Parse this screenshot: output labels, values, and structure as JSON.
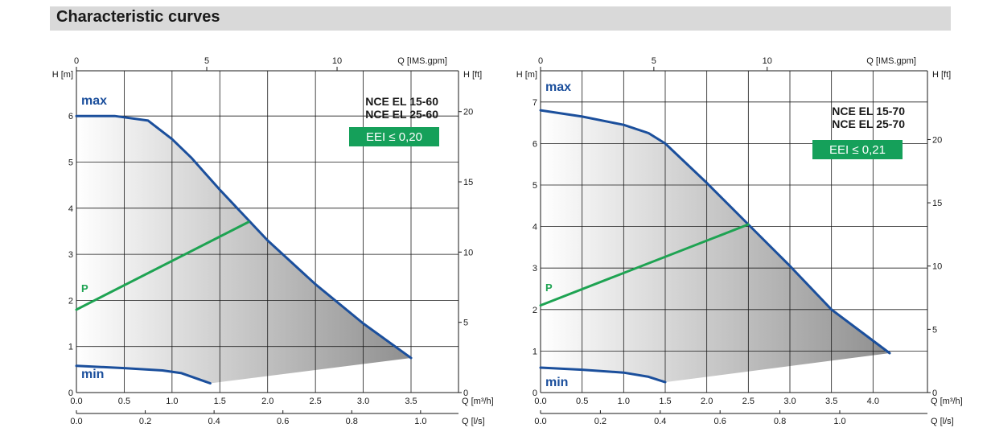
{
  "header": {
    "title": "Characteristic curves"
  },
  "chart_data": [
    {
      "type": "line",
      "models": [
        "NCE EL 15-60",
        "NCE EL 25-60"
      ],
      "eei_label": "EEI ≤ 0,20",
      "xlabel": "Q [m³/h]",
      "ylabel": "H [m]",
      "ylabel_right": "H [ft]",
      "xlabel_top": "Q [IMS.gpm]",
      "xlabel_bottom2": "Q [l/s]",
      "xlim": [
        0,
        3.5
      ],
      "ylim": [
        0,
        6.8
      ],
      "x_ticks": [
        "0.0",
        "0.5",
        "1.0",
        "1.5",
        "2.0",
        "2.5",
        "3.0",
        "3.5"
      ],
      "y_ticks": [
        "0",
        "1",
        "2",
        "3",
        "4",
        "5",
        "6"
      ],
      "ft_ticks": [
        "0",
        "5",
        "10",
        "15",
        "20"
      ],
      "gpm_ticks": [
        "0",
        "5",
        "10"
      ],
      "ls_ticks": [
        "0.0",
        "0.2",
        "0.4",
        "0.6",
        "0.8",
        "1.0"
      ],
      "series": [
        {
          "name": "max",
          "x": [
            0,
            0.4,
            0.75,
            1.0,
            1.2,
            1.5,
            2.0,
            2.5,
            3.0,
            3.5
          ],
          "y": [
            6.0,
            6.0,
            5.9,
            5.5,
            5.1,
            4.4,
            3.3,
            2.35,
            1.5,
            0.75
          ]
        },
        {
          "name": "min",
          "x": [
            0,
            0.5,
            0.9,
            1.1,
            1.4
          ],
          "y": [
            0.58,
            0.53,
            0.48,
            0.42,
            0.2
          ]
        },
        {
          "name": "P",
          "x": [
            0,
            1.8
          ],
          "y": [
            1.8,
            3.7
          ]
        }
      ],
      "grid": true
    },
    {
      "type": "line",
      "models": [
        "NCE EL 15-70",
        "NCE EL 25-70"
      ],
      "eei_label": "EEI ≤ 0,21",
      "xlabel": "Q [m³/h]",
      "ylabel": "H [m]",
      "ylabel_right": "H [ft]",
      "xlabel_top": "Q [IMS.gpm]",
      "xlabel_bottom2": "Q [l/s]",
      "xlim": [
        0,
        4.5
      ],
      "ylim": [
        0,
        8.0
      ],
      "x_ticks": [
        "0.0",
        "0.5",
        "1.0",
        "1.5",
        "2.0",
        "2.5",
        "3.0",
        "3.5",
        "4.0"
      ],
      "y_ticks": [
        "0",
        "1",
        "2",
        "3",
        "4",
        "5",
        "6",
        "7"
      ],
      "ft_ticks": [
        "0",
        "5",
        "10",
        "15",
        "20"
      ],
      "gpm_ticks": [
        "0",
        "5",
        "10"
      ],
      "ls_ticks": [
        "0.0",
        "0.2",
        "0.4",
        "0.6",
        "0.8",
        "1.0"
      ],
      "series": [
        {
          "name": "max",
          "x": [
            0,
            0.5,
            1.0,
            1.3,
            1.5,
            2.0,
            2.5,
            3.0,
            3.5,
            4.0,
            4.2
          ],
          "y": [
            6.8,
            6.65,
            6.45,
            6.25,
            6.0,
            5.05,
            4.05,
            3.05,
            2.0,
            1.25,
            0.95
          ]
        },
        {
          "name": "min",
          "x": [
            0,
            0.5,
            1.0,
            1.3,
            1.5
          ],
          "y": [
            0.6,
            0.55,
            0.48,
            0.38,
            0.25
          ]
        },
        {
          "name": "P",
          "x": [
            0,
            2.5
          ],
          "y": [
            2.1,
            4.05
          ]
        }
      ],
      "grid": true
    }
  ]
}
